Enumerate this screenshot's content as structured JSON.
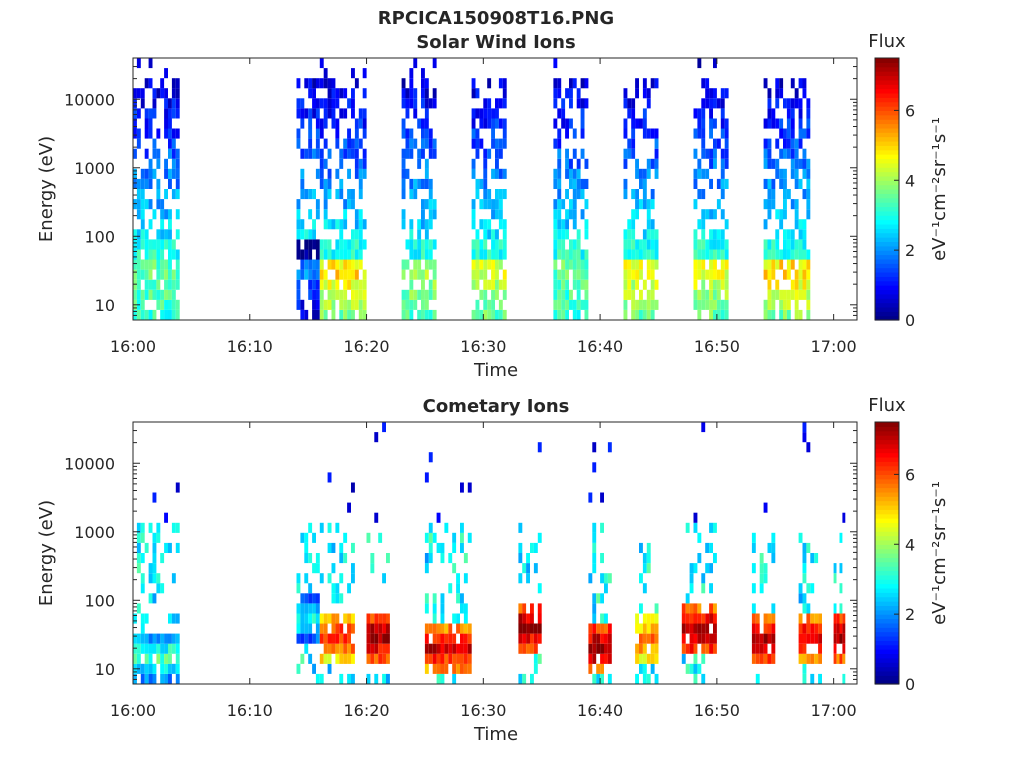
{
  "figure_title": "RPCICA150908T16.PNG",
  "colorbar_label": "Flux",
  "colorbar_units": "eV⁻¹cm⁻²sr⁻¹s⁻¹",
  "colors": {
    "axes": "#262626",
    "background": "#ffffff"
  },
  "chart_data": [
    {
      "type": "heatmap",
      "title": "Solar Wind Ions",
      "xlabel": "Time",
      "ylabel": "Energy (eV)",
      "yscale": "log",
      "xlim": [
        "16:00",
        "17:02"
      ],
      "ylim": [
        6,
        40000
      ],
      "x_ticks": [
        "16:00",
        "16:10",
        "16:20",
        "16:30",
        "16:40",
        "16:50",
        "17:00"
      ],
      "y_ticks": [
        "10",
        "100",
        "1000",
        "10000"
      ],
      "colorbar": {
        "label": "Flux",
        "range": [
          0,
          7.5
        ],
        "ticks": [
          "0",
          "2",
          "4",
          "6"
        ],
        "colormap": "jet"
      },
      "grid": false,
      "bursts": [
        {
          "start": "16:00",
          "end": "16:04",
          "flux_at_10eV": 3,
          "flux_peak": 3.5
        },
        {
          "start": "16:14",
          "end": "16:16",
          "flux_at_10eV": 0,
          "flux_peak": 2
        },
        {
          "start": "16:16",
          "end": "16:20",
          "flux_at_10eV": 3,
          "flux_peak": 5
        },
        {
          "start": "16:23",
          "end": "16:26",
          "flux_at_10eV": 3,
          "flux_peak": 4
        },
        {
          "start": "16:29",
          "end": "16:32",
          "flux_at_10eV": 3,
          "flux_peak": 4.5
        },
        {
          "start": "16:36",
          "end": "16:39",
          "flux_at_10eV": 3,
          "flux_peak": 3.5
        },
        {
          "start": "16:42",
          "end": "16:45",
          "flux_at_10eV": 3,
          "flux_peak": 4.5
        },
        {
          "start": "16:48",
          "end": "16:51",
          "flux_at_10eV": 3,
          "flux_peak": 4.5
        },
        {
          "start": "16:54",
          "end": "16:58",
          "flux_at_10eV": 3,
          "flux_peak": 5
        }
      ]
    },
    {
      "type": "heatmap",
      "title": "Cometary Ions",
      "xlabel": "Time",
      "ylabel": "Energy (eV)",
      "yscale": "log",
      "xlim": [
        "16:00",
        "17:02"
      ],
      "ylim": [
        6,
        40000
      ],
      "x_ticks": [
        "16:00",
        "16:10",
        "16:20",
        "16:30",
        "16:40",
        "16:50",
        "17:00"
      ],
      "y_ticks": [
        "10",
        "100",
        "1000",
        "10000"
      ],
      "colorbar": {
        "label": "Flux",
        "range": [
          0,
          7.5
        ],
        "ticks": [
          "0",
          "2",
          "4",
          "6"
        ],
        "colormap": "jet"
      },
      "grid": false,
      "bursts": [
        {
          "start": "16:00",
          "end": "16:04",
          "energy_peak_eV": 15,
          "flux_peak": 3.5
        },
        {
          "start": "16:14",
          "end": "16:16",
          "energy_peak_eV": 50,
          "flux_peak": 3
        },
        {
          "start": "16:16",
          "end": "16:19",
          "energy_peak_eV": 30,
          "flux_peak": 6.5
        },
        {
          "start": "16:20",
          "end": "16:22",
          "energy_peak_eV": 30,
          "flux_peak": 7.5
        },
        {
          "start": "16:25",
          "end": "16:29",
          "energy_peak_eV": 20,
          "flux_peak": 7
        },
        {
          "start": "16:33",
          "end": "16:35",
          "energy_peak_eV": 40,
          "flux_peak": 7.5
        },
        {
          "start": "16:39",
          "end": "16:41",
          "energy_peak_eV": 20,
          "flux_peak": 7.5
        },
        {
          "start": "16:43",
          "end": "16:45",
          "energy_peak_eV": 25,
          "flux_peak": 6
        },
        {
          "start": "16:47",
          "end": "16:50",
          "energy_peak_eV": 35,
          "flux_peak": 7.5
        },
        {
          "start": "16:53",
          "end": "16:55",
          "energy_peak_eV": 25,
          "flux_peak": 7.5
        },
        {
          "start": "16:57",
          "end": "16:59",
          "energy_peak_eV": 30,
          "flux_peak": 7
        },
        {
          "start": "17:00",
          "end": "17:01",
          "energy_peak_eV": 30,
          "flux_peak": 7.5
        }
      ]
    }
  ]
}
